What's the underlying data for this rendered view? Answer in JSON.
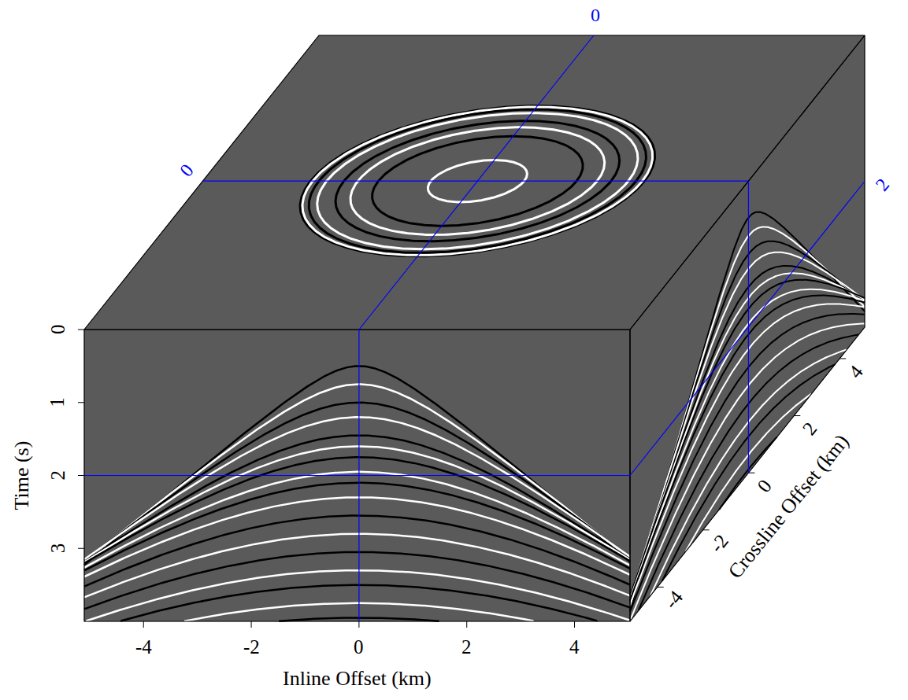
{
  "chart_data": {
    "type": "cube",
    "color": "#5a5a5a",
    "axes": {
      "inline": {
        "title": "Inline Offset (km)",
        "lim": [
          -5.1,
          5.03
        ],
        "ticks": [
          -4,
          -2,
          0,
          2,
          4
        ]
      },
      "time": {
        "title": "Time (s)",
        "lim": [
          0,
          4
        ],
        "ticks": [
          0,
          1,
          2,
          3
        ]
      },
      "crossline": {
        "title": "Crossline Offset (km)",
        "lim": [
          -5.2,
          5.1
        ],
        "ticks": [
          -4,
          -2,
          0,
          2,
          4
        ]
      }
    },
    "slices": {
      "inline": 0,
      "crossline": 0,
      "time": 2,
      "color": "#0000ff"
    },
    "source": {
      "inline": 0,
      "crossline": 0
    },
    "events": [
      {
        "t0": 0.5,
        "inline_velocity": 1.6,
        "crossline_velocity": 1.36,
        "color": "#000000"
      },
      {
        "t0": 0.75,
        "inline_velocity": 1.65,
        "crossline_velocity": 1.4,
        "color": "#ffffff"
      },
      {
        "t0": 1.0,
        "inline_velocity": 1.7,
        "crossline_velocity": 1.45,
        "color": "#000000"
      },
      {
        "t0": 1.2,
        "inline_velocity": 1.75,
        "crossline_velocity": 1.49,
        "color": "#ffffff"
      },
      {
        "t0": 1.45,
        "inline_velocity": 1.8,
        "crossline_velocity": 1.53,
        "color": "#000000"
      },
      {
        "t0": 1.6,
        "inline_velocity": 1.85,
        "crossline_velocity": 1.57,
        "color": "#ffffff"
      },
      {
        "t0": 1.75,
        "inline_velocity": 1.9,
        "crossline_velocity": 1.62,
        "color": "#000000"
      },
      {
        "t0": 1.95,
        "inline_velocity": 1.95,
        "crossline_velocity": 1.66,
        "color": "#ffffff"
      },
      {
        "t0": 2.1,
        "inline_velocity": 2.0,
        "crossline_velocity": 1.7,
        "color": "#000000"
      },
      {
        "t0": 2.3,
        "inline_velocity": 2.05,
        "crossline_velocity": 1.74,
        "color": "#ffffff"
      },
      {
        "t0": 2.55,
        "inline_velocity": 2.1,
        "crossline_velocity": 1.79,
        "color": "#000000"
      },
      {
        "t0": 2.8,
        "inline_velocity": 2.15,
        "crossline_velocity": 1.83,
        "color": "#ffffff"
      },
      {
        "t0": 3.05,
        "inline_velocity": 2.2,
        "crossline_velocity": 1.87,
        "color": "#000000"
      },
      {
        "t0": 3.3,
        "inline_velocity": 2.25,
        "crossline_velocity": 1.91,
        "color": "#ffffff"
      },
      {
        "t0": 3.5,
        "inline_velocity": 2.3,
        "crossline_velocity": 1.96,
        "color": "#000000"
      },
      {
        "t0": 3.75,
        "inline_velocity": 2.35,
        "crossline_velocity": 2.0,
        "color": "#ffffff"
      },
      {
        "t0": 3.95,
        "inline_velocity": 2.4,
        "crossline_velocity": 2.04,
        "color": "#000000"
      }
    ]
  }
}
